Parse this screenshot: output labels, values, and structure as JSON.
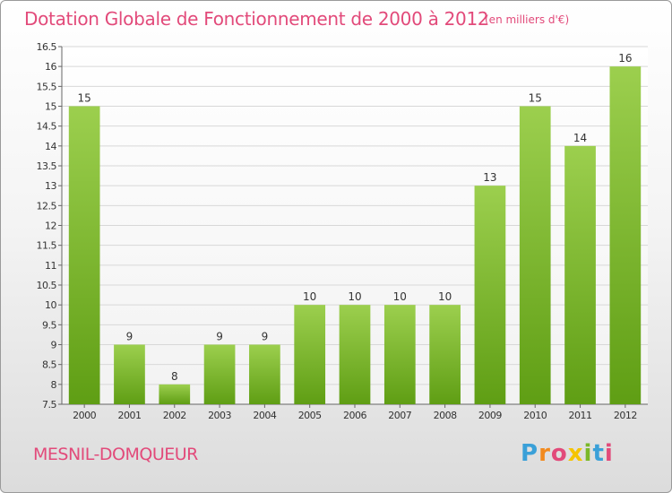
{
  "header": {
    "title": "Dotation Globale de Fonctionnement de 2000 à 2012",
    "unit": "(en milliers d'€)"
  },
  "footer": {
    "place": "MESNIL-DOMQUEUR",
    "logo": "Proxiti"
  },
  "colors": {
    "title": "#e24a7a",
    "bar_top": "#9ccf4e",
    "bar_bottom": "#5f9e14"
  },
  "chart_data": {
    "type": "bar",
    "title": "Dotation Globale de Fonctionnement de 2000 à 2012",
    "subtitle": "(en milliers d'€)",
    "categories": [
      "2000",
      "2001",
      "2002",
      "2003",
      "2004",
      "2005",
      "2006",
      "2007",
      "2008",
      "2009",
      "2010",
      "2011",
      "2012"
    ],
    "values": [
      15,
      9,
      8,
      9,
      9,
      10,
      10,
      10,
      10,
      13,
      15,
      14,
      16
    ],
    "ylim": [
      7.5,
      16.5
    ],
    "yticks": [
      "7.5",
      "8",
      "8.5",
      "9",
      "9.5",
      "10",
      "10.5",
      "11",
      "11.5",
      "12",
      "12.5",
      "13",
      "13.5",
      "14",
      "14.5",
      "15",
      "15.5",
      "16",
      "16.5"
    ],
    "grid": true,
    "legend": "none"
  }
}
